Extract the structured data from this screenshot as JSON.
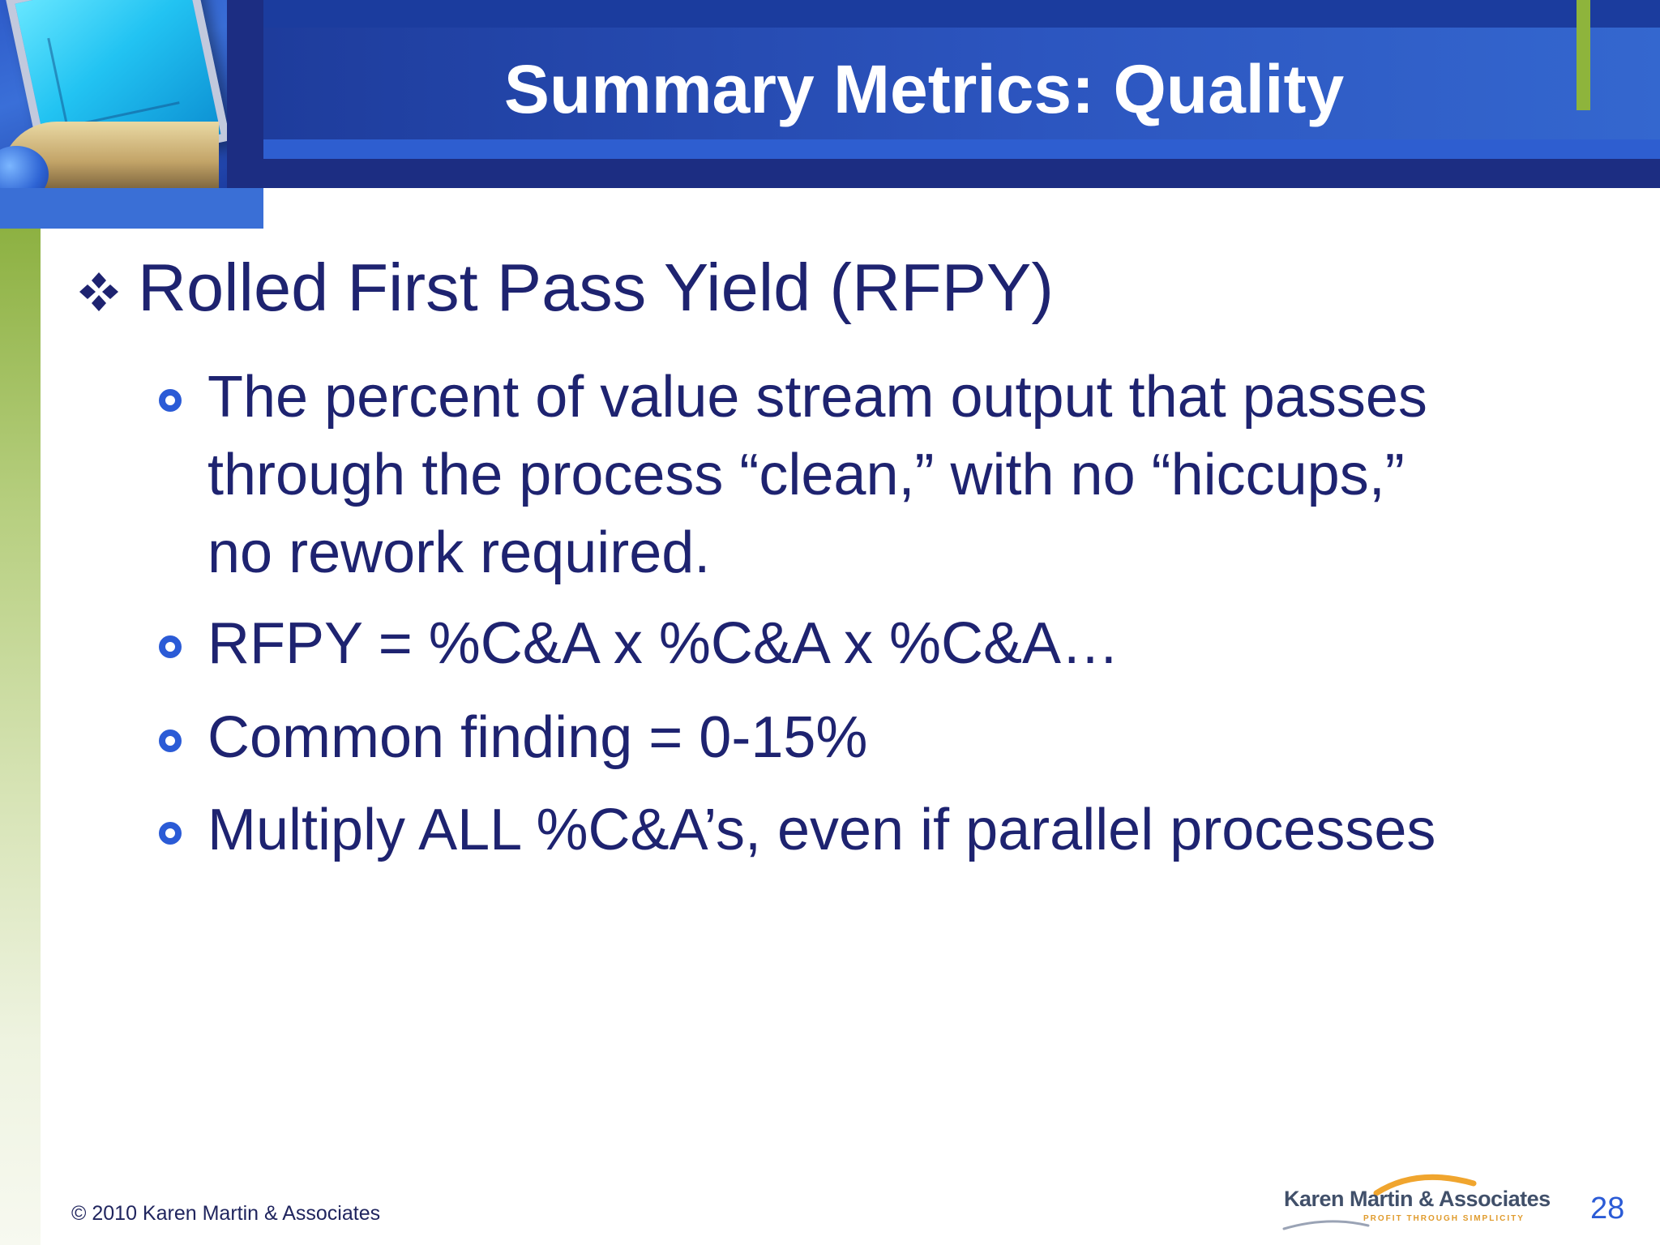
{
  "slide": {
    "title": "Summary Metrics: Quality",
    "main_point": "Rolled First Pass Yield (RFPY)",
    "sub_points": [
      [
        "The percent of value stream output that passes",
        "through the process “clean,” with no “hiccups,”",
        "no rework required."
      ],
      [
        "RFPY = %C&A x %C&A x %C&A…"
      ],
      [
        "Common finding = 0-15%"
      ],
      [
        "Multiply ALL %C&A’s, even if parallel processes"
      ]
    ],
    "colors": {
      "title_bar": "#2c55bf",
      "header_dark": "#1c2d82",
      "text": "#1e2370",
      "bullet": "#2b5bd6",
      "accent_green": "#8eb43c"
    }
  },
  "footer": {
    "copyright": "© 2010 Karen Martin & Associates",
    "logo_name": "Karen Martin & Associates",
    "logo_tagline": "PROFIT THROUGH SIMPLICITY",
    "page_number": "28"
  },
  "icons": {
    "main_bullet": "four-diamond-icon",
    "sub_bullet": "ring-bullet-icon",
    "corner_image": "computer-monitor-icon"
  }
}
